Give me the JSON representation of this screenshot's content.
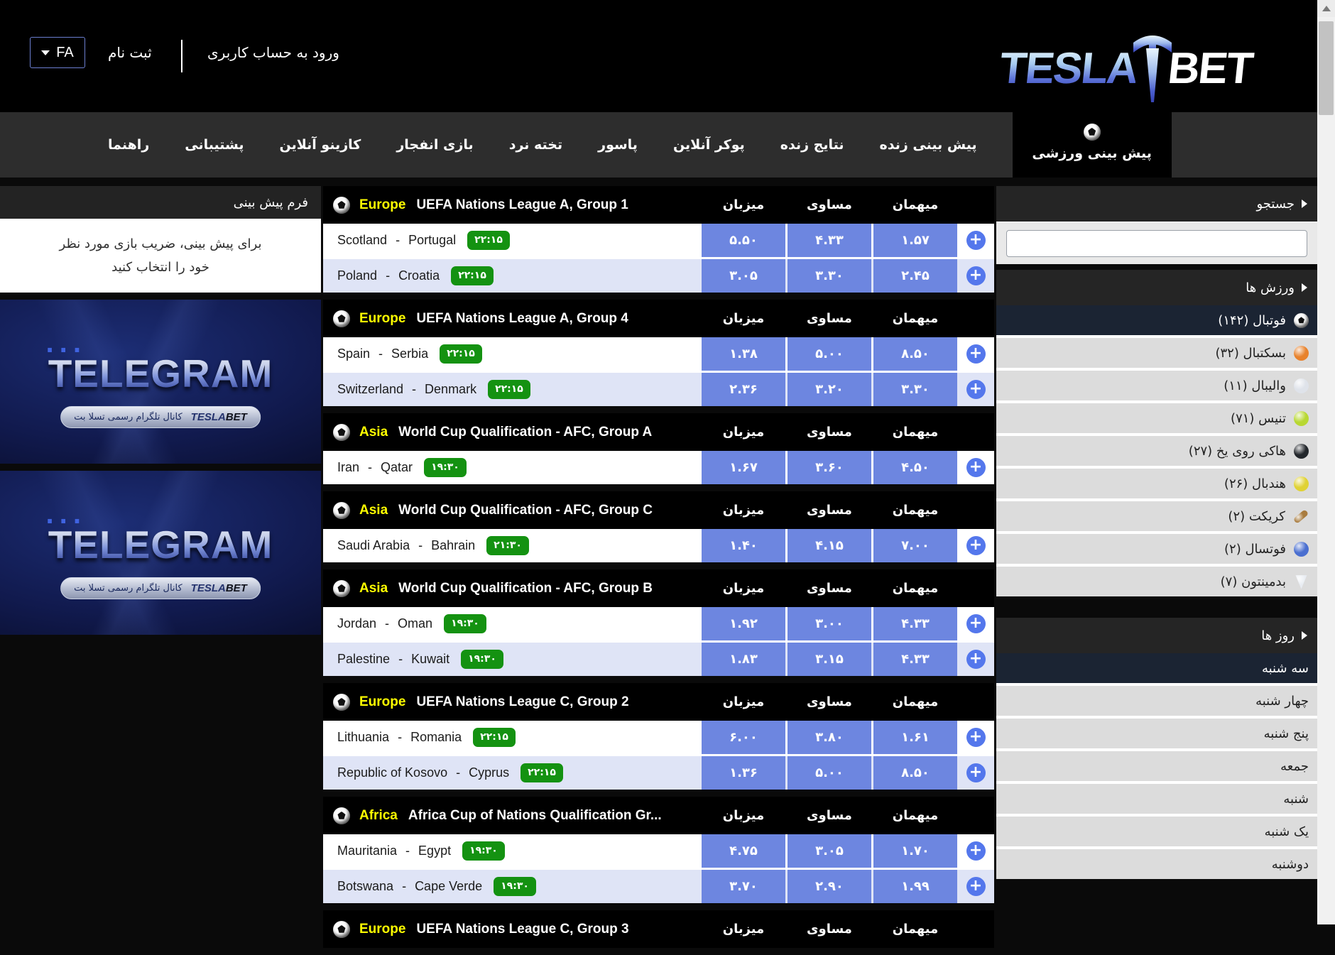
{
  "header": {
    "logo_tesla": "TESLA",
    "logo_bet": "BET",
    "login_label": "ورود به حساب کاربری",
    "register_label": "ثبت نام",
    "lang": "FA"
  },
  "nav": {
    "items": [
      "راهنما",
      "پشتیبانی",
      "کازینو آنلاین",
      "بازی انفجار",
      "تخته نرد",
      "پاسور",
      "پوکر آنلاین",
      "نتایج زنده",
      "پیش بینی زنده"
    ],
    "active": "پیش بینی ورزشی"
  },
  "left_panel": {
    "form_title": "فرم پیش بینی",
    "hint_lines": [
      "برای پیش بینی، ضریب بازی مورد نظر",
      "خود را انتخاب کنید"
    ],
    "telegram": {
      "dots": "...",
      "title": "TELEGRAM",
      "pill_text": "کانال تلگرام رسمی تسلا بت",
      "pill_logo_tesla": "TESLA",
      "pill_logo_bet": "BET"
    }
  },
  "sidebar": {
    "search_title": "جستجو",
    "search_value": "",
    "sports_title": "ورزش ها",
    "days_title": "روز ها",
    "sports": [
      {
        "label": "فوتبال (۱۴۲)",
        "icon": "football",
        "color": "#ffffff",
        "active": true
      },
      {
        "label": "بسکتبال (۳۲)",
        "icon": "basketball",
        "color": "#e8822c",
        "active": false
      },
      {
        "label": "والیبال (۱۱)",
        "icon": "volleyball",
        "color": "#dfe3ea",
        "active": false
      },
      {
        "label": "تنیس (۷۱)",
        "icon": "tennis",
        "color": "#b8d832",
        "active": false
      },
      {
        "label": "هاکی روی یخ (۲۷)",
        "icon": "ice-hockey",
        "color": "#23272c",
        "active": false
      },
      {
        "label": "هندبال (۲۶)",
        "icon": "handball",
        "color": "#e0d234",
        "active": false
      },
      {
        "label": "کریکت (۲)",
        "icon": "cricket",
        "color": "#a97c3f",
        "active": false
      },
      {
        "label": "فوتسال (۲)",
        "icon": "futsal",
        "color": "#4a6fd0",
        "active": false
      },
      {
        "label": "بدمینتون (۷)",
        "icon": "badminton",
        "color": "#e8ecf2",
        "active": false
      }
    ],
    "days": [
      {
        "label": "سه شنبه",
        "active": true
      },
      {
        "label": "چهار شنبه",
        "active": false
      },
      {
        "label": "پنج شنبه",
        "active": false
      },
      {
        "label": "جمعه",
        "active": false
      },
      {
        "label": "شنبه",
        "active": false
      },
      {
        "label": "یک شنبه",
        "active": false
      },
      {
        "label": "دوشنبه",
        "active": false
      }
    ]
  },
  "odds_headers": [
    "میزبان",
    "مساوی",
    "میهمان"
  ],
  "sections": [
    {
      "region": "Europe",
      "league": "UEFA Nations League A, Group 1",
      "matches": [
        {
          "home": "Scotland",
          "away": "Portugal",
          "time": "۲۲:۱۵",
          "odds": [
            "۵.۵۰",
            "۴.۳۳",
            "۱.۵۷"
          ]
        },
        {
          "home": "Poland",
          "away": "Croatia",
          "time": "۲۲:۱۵",
          "odds": [
            "۳.۰۵",
            "۳.۳۰",
            "۲.۴۵"
          ]
        }
      ]
    },
    {
      "region": "Europe",
      "league": "UEFA Nations League A, Group 4",
      "matches": [
        {
          "home": "Spain",
          "away": "Serbia",
          "time": "۲۲:۱۵",
          "odds": [
            "۱.۳۸",
            "۵.۰۰",
            "۸.۵۰"
          ]
        },
        {
          "home": "Switzerland",
          "away": "Denmark",
          "time": "۲۲:۱۵",
          "odds": [
            "۲.۳۶",
            "۳.۲۰",
            "۳.۳۰"
          ]
        }
      ]
    },
    {
      "region": "Asia",
      "league": "World Cup Qualification - AFC, Group A",
      "matches": [
        {
          "home": "Iran",
          "away": "Qatar",
          "time": "۱۹:۳۰",
          "odds": [
            "۱.۶۷",
            "۳.۶۰",
            "۴.۵۰"
          ]
        }
      ]
    },
    {
      "region": "Asia",
      "league": "World Cup Qualification - AFC, Group C",
      "matches": [
        {
          "home": "Saudi Arabia",
          "away": "Bahrain",
          "time": "۲۱:۳۰",
          "odds": [
            "۱.۴۰",
            "۴.۱۵",
            "۷.۰۰"
          ]
        }
      ]
    },
    {
      "region": "Asia",
      "league": "World Cup Qualification - AFC, Group B",
      "matches": [
        {
          "home": "Jordan",
          "away": "Oman",
          "time": "۱۹:۳۰",
          "odds": [
            "۱.۹۲",
            "۳.۰۰",
            "۴.۳۳"
          ]
        },
        {
          "home": "Palestine",
          "away": "Kuwait",
          "time": "۱۹:۳۰",
          "odds": [
            "۱.۸۳",
            "۳.۱۵",
            "۴.۳۳"
          ]
        }
      ]
    },
    {
      "region": "Europe",
      "league": "UEFA Nations League C, Group 2",
      "matches": [
        {
          "home": "Lithuania",
          "away": "Romania",
          "time": "۲۲:۱۵",
          "odds": [
            "۶.۰۰",
            "۳.۸۰",
            "۱.۶۱"
          ]
        },
        {
          "home": "Republic of Kosovo",
          "away": "Cyprus",
          "time": "۲۲:۱۵",
          "odds": [
            "۱.۳۶",
            "۵.۰۰",
            "۸.۵۰"
          ]
        }
      ]
    },
    {
      "region": "Africa",
      "league": "Africa Cup of Nations Qualification Gr...",
      "matches": [
        {
          "home": "Mauritania",
          "away": "Egypt",
          "time": "۱۹:۳۰",
          "odds": [
            "۴.۷۵",
            "۳.۰۵",
            "۱.۷۰"
          ]
        },
        {
          "home": "Botswana",
          "away": "Cape Verde",
          "time": "۱۹:۳۰",
          "odds": [
            "۳.۷۰",
            "۲.۹۰",
            "۱.۹۹"
          ]
        }
      ]
    },
    {
      "region": "Europe",
      "league": "UEFA Nations League C, Group 3",
      "matches": []
    }
  ],
  "colors": {
    "odds_cell_blue": "#6d86e0",
    "plus_button_blue": "#5477ec",
    "time_badge_green": "#149211",
    "region_yellow": "#ffff00",
    "row_alt_lavender": "#dfe4f6",
    "active_item_dark": "#1b2433",
    "navbar_gray": "#2d2d2d"
  }
}
